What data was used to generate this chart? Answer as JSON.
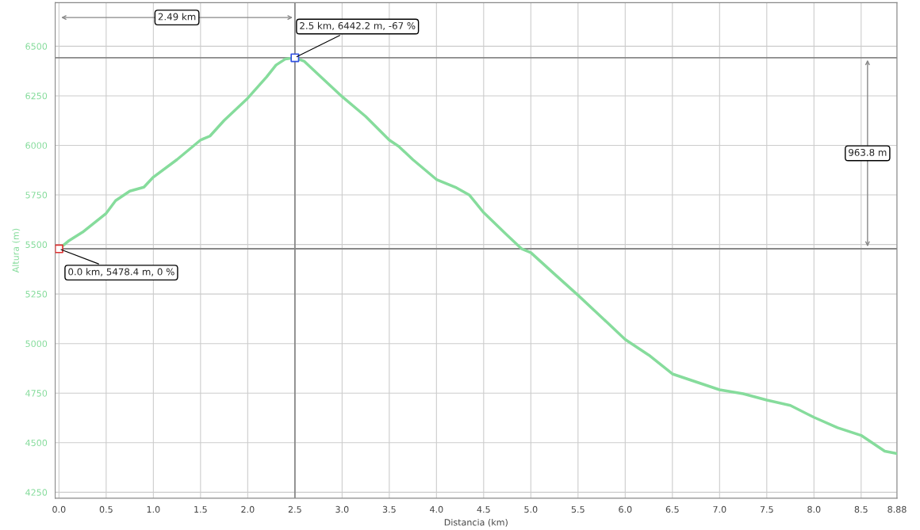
{
  "chart_data": {
    "type": "line",
    "xlabel": "Distancia (km)",
    "ylabel": "Altura (m)",
    "x": [
      0,
      0.1,
      0.25,
      0.5,
      0.6,
      0.75,
      0.9,
      1.0,
      1.25,
      1.5,
      1.6,
      1.75,
      2.0,
      2.2,
      2.3,
      2.4,
      2.5,
      2.6,
      2.75,
      3.0,
      3.25,
      3.5,
      3.6,
      3.75,
      4.0,
      4.2,
      4.35,
      4.5,
      4.75,
      4.9,
      5.0,
      5.25,
      5.5,
      5.75,
      6.0,
      6.25,
      6.5,
      6.75,
      7.0,
      7.25,
      7.5,
      7.75,
      8.0,
      8.25,
      8.5,
      8.75,
      8.88
    ],
    "series": [
      {
        "color": "#86dc9c",
        "values": [
          5478,
          5517,
          5562,
          5657,
          5721,
          5769,
          5789,
          5840,
          5928,
          6027,
          6047,
          6126,
          6238,
          6345,
          6405,
          6436,
          6442,
          6424,
          6357,
          6246,
          6146,
          6027,
          5995,
          5928,
          5828,
          5789,
          5749,
          5661,
          5546,
          5479,
          5459,
          5351,
          5244,
          5133,
          5021,
          4942,
          4847,
          4807,
          4767,
          4747,
          4715,
          4688,
          4628,
          4576,
          4537,
          4457,
          4445
        ]
      },
      {
        "type": "scatter",
        "marker": "square",
        "x": [
          0,
          2.5
        ],
        "colors": [
          "#e03030",
          "#3050e0"
        ],
        "values": [
          5478,
          6442
        ]
      }
    ],
    "xlim": [
      -0.04,
      8.88
    ],
    "ylim": [
      4220,
      6720
    ],
    "xticks": [
      {
        "value": 0,
        "label": "0.0"
      },
      0.5,
      {
        "value": 1,
        "label": "1.0"
      },
      1.5,
      {
        "value": 2,
        "label": "2.0"
      },
      2.5,
      {
        "value": 3,
        "label": "3.0"
      },
      3.5,
      {
        "value": 4,
        "label": "4.0"
      },
      4.5,
      {
        "value": 5,
        "label": "5.0"
      },
      5.5,
      {
        "value": 6,
        "label": "6.0"
      },
      6.5,
      {
        "value": 7,
        "label": "7.0"
      },
      7.5,
      {
        "value": 8,
        "label": "8.0"
      },
      8.5,
      8.88
    ],
    "yticks": [
      4250,
      4500,
      4750,
      5000,
      5250,
      5500,
      5750,
      6000,
      6250,
      6500
    ],
    "grid": true,
    "ref_lines": [
      {
        "axis": "y",
        "value": 5478.4,
        "color": "#888888"
      },
      {
        "axis": "y",
        "value": 6442.2,
        "color": "#888888"
      },
      {
        "axis": "x",
        "value": 2.5,
        "color": "#888888"
      }
    ],
    "annotations": [
      {
        "text": "0.0 km, 5478.4 m, 0 %",
        "x": 0,
        "y": 5478.4
      },
      {
        "text": "2.5 km, 6442.2 m, -67 %",
        "x": 2.5,
        "y": 6442.2
      },
      "2.49 km",
      "963.8 m"
    ]
  }
}
